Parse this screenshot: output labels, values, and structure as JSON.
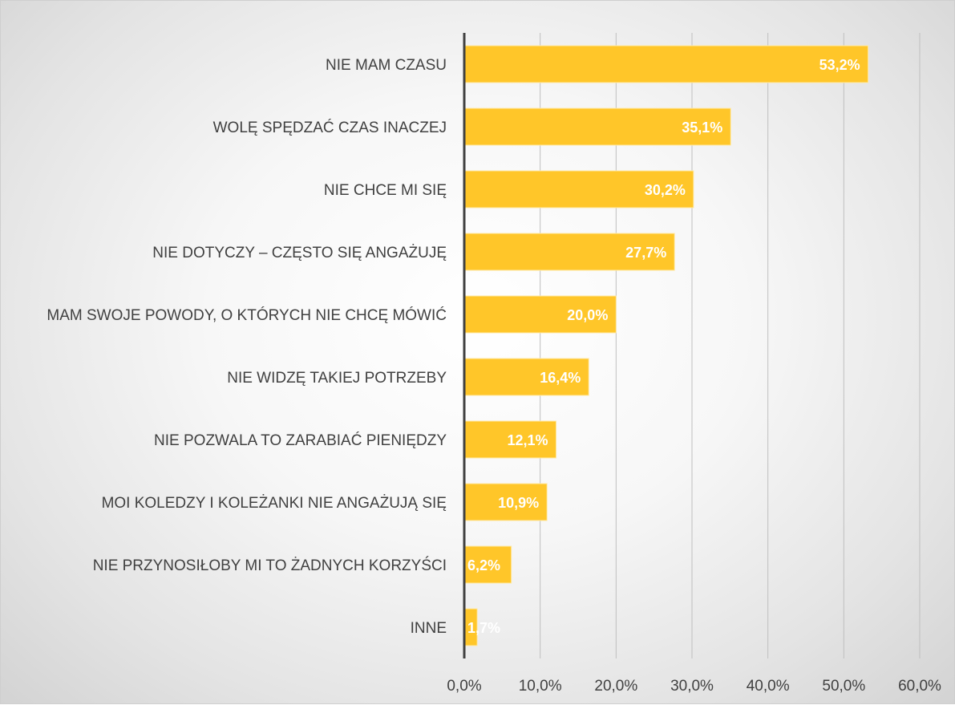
{
  "chart_data": {
    "type": "bar",
    "orientation": "horizontal",
    "title": "",
    "xlabel": "",
    "ylabel": "",
    "categories": [
      "NIE MAM CZASU",
      "WOLĘ SPĘDZAĆ CZAS INACZEJ",
      "NIE CHCE MI SIĘ",
      "NIE DOTYCZY – CZĘSTO SIĘ ANGAŻUJĘ",
      "MAM SWOJE POWODY, O KTÓRYCH NIE CHCĘ MÓWIĆ",
      "NIE WIDZĘ TAKIEJ POTRZEBY",
      "NIE POZWALA TO ZARABIAĆ PIENIĘDZY",
      "MOI KOLEDZY I KOLEŻANKI NIE ANGAŻUJĄ SIĘ",
      "NIE PRZYNOSIŁOBY MI TO ŻADNYCH KORZYŚCI",
      "INNE"
    ],
    "values": [
      53.2,
      35.1,
      30.2,
      27.7,
      20.0,
      16.4,
      12.1,
      10.9,
      6.2,
      1.7
    ],
    "data_labels": [
      "53,2%",
      "35,1%",
      "30,2%",
      "27,7%",
      "20,0%",
      "16,4%",
      "12,1%",
      "10,9%",
      "6,2%",
      "1,7%"
    ],
    "xlim": [
      0,
      60
    ],
    "x_ticks": [
      0,
      10,
      20,
      30,
      40,
      50,
      60
    ],
    "x_tick_labels": [
      "0,0%",
      "10,0%",
      "20,0%",
      "30,0%",
      "40,0%",
      "50,0%",
      "60,0%"
    ],
    "grid": "vertical",
    "legend": "none",
    "colors": {
      "bar": "#FFC629",
      "bar_border": "#FFE9A6",
      "grid": "#bfbfbf",
      "axis": "#404040",
      "text": "#404040",
      "data_label": "#ffffff"
    }
  }
}
